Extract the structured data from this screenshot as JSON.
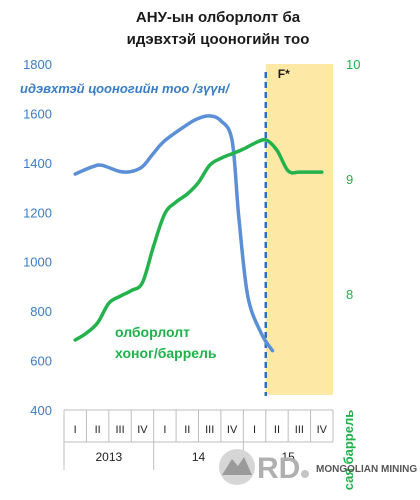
{
  "chart_data": {
    "type": "line",
    "title": "АНУ-ын олборлолт ба идэвхтэй цооногийн тоо",
    "quarters": [
      "I",
      "II",
      "III",
      "IV",
      "I",
      "II",
      "III",
      "IV",
      "I",
      "II",
      "III",
      "IV"
    ],
    "years": [
      {
        "label": "2013",
        "start": 0,
        "end": 3
      },
      {
        "label": "14",
        "start": 4,
        "end": 7
      },
      {
        "label": "15",
        "start": 8,
        "end": 11
      }
    ],
    "forecast_label": "F*",
    "forecast_start_index": 8.5,
    "left_axis": {
      "min": 400,
      "max": 1800,
      "ticks": [
        400,
        600,
        800,
        1000,
        1200,
        1400,
        1600,
        1800
      ]
    },
    "right_axis": {
      "min": 7,
      "max": 10,
      "ticks": [
        8,
        9,
        10
      ],
      "label": "сая баррель"
    },
    "series": [
      {
        "name": "идэвхтэй цооногийн тоо /зүүн/",
        "axis": "left",
        "color": "#5b8fd6",
        "x": [
          0,
          0.8,
          1.2,
          2,
          2.5,
          3,
          3.5,
          4,
          5,
          5.5,
          6,
          6.5,
          7,
          7.3,
          7.7,
          8.3,
          8.8
        ],
        "y": [
          1355,
          1385,
          1390,
          1365,
          1365,
          1385,
          1440,
          1490,
          1555,
          1580,
          1590,
          1570,
          1490,
          1180,
          860,
          710,
          640
        ]
      },
      {
        "name": "олборлолт хоног/баррель",
        "axis": "right",
        "color": "#23b24b",
        "x": [
          0,
          0.5,
          1,
          1.5,
          2,
          2.5,
          3,
          3.5,
          4,
          4.5,
          5,
          5.5,
          6,
          6.5,
          7,
          7.5,
          8,
          8.5,
          9,
          9.5,
          10,
          10.5,
          11
        ],
        "y": [
          7.6,
          7.66,
          7.75,
          7.92,
          7.98,
          8.03,
          8.1,
          8.42,
          8.7,
          8.8,
          8.87,
          8.97,
          9.12,
          9.18,
          9.22,
          9.26,
          9.31,
          9.34,
          9.25,
          9.07,
          9.06,
          9.06,
          9.06
        ]
      }
    ]
  },
  "branding": {
    "logo_text": "RD",
    "company": "MONGOLIAN MINING"
  }
}
